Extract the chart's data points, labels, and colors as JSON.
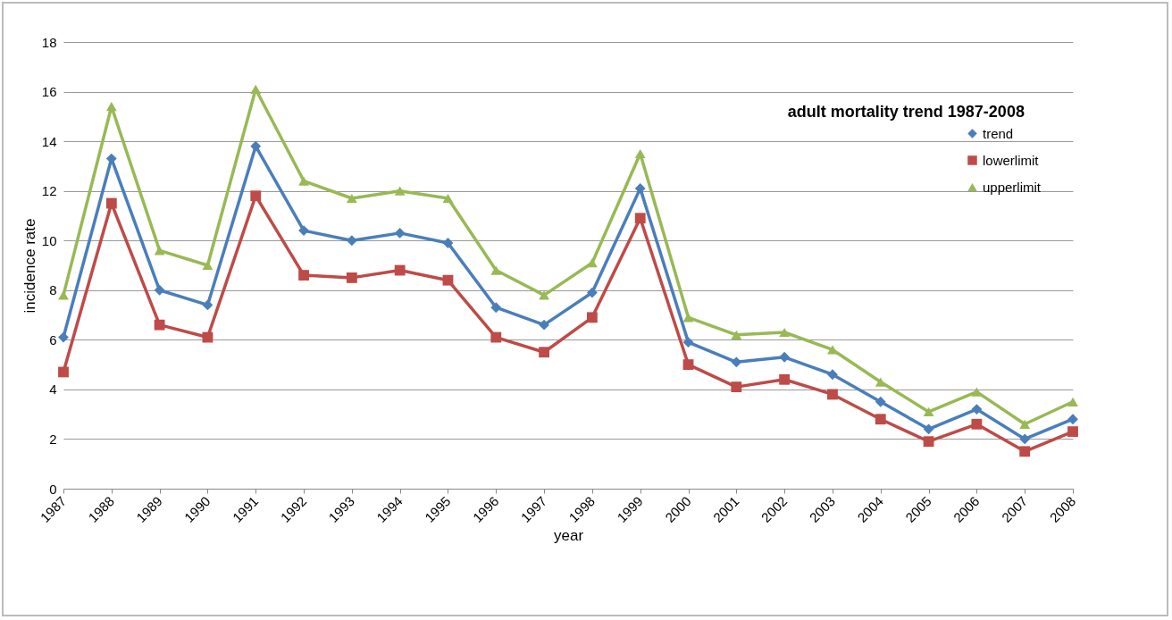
{
  "chart_data": {
    "type": "line",
    "title": "adult mortality trend 1987-2008",
    "xlabel": "year",
    "ylabel": "incidence rate",
    "categories": [
      "1987",
      "1988",
      "1989",
      "1990",
      "1991",
      "1992",
      "1993",
      "1994",
      "1995",
      "1996",
      "1997",
      "1998",
      "1999",
      "2000",
      "2001",
      "2002",
      "2003",
      "2004",
      "2005",
      "2006",
      "2007",
      "2008"
    ],
    "series": [
      {
        "name": "trend",
        "color": "#4a7ebb",
        "marker": "diamond",
        "values": [
          6.1,
          13.3,
          8.0,
          7.4,
          13.8,
          10.4,
          10.0,
          10.3,
          9.9,
          7.3,
          6.6,
          7.9,
          12.1,
          5.9,
          5.1,
          5.3,
          4.6,
          3.5,
          2.4,
          3.2,
          2.0,
          2.8
        ]
      },
      {
        "name": "lowerlimit",
        "color": "#be4b48",
        "marker": "square",
        "values": [
          4.7,
          11.5,
          6.6,
          6.1,
          11.8,
          8.6,
          8.5,
          8.8,
          8.4,
          6.1,
          5.5,
          6.9,
          10.9,
          5.0,
          4.1,
          4.4,
          3.8,
          2.8,
          1.9,
          2.6,
          1.5,
          2.3
        ]
      },
      {
        "name": "upperlimit",
        "color": "#98b954",
        "marker": "triangle",
        "values": [
          7.8,
          15.4,
          9.6,
          9.0,
          16.1,
          12.4,
          11.7,
          12.0,
          11.7,
          8.8,
          7.8,
          9.1,
          13.5,
          6.9,
          6.2,
          6.3,
          5.6,
          4.3,
          3.1,
          3.9,
          2.6,
          3.5
        ]
      }
    ],
    "ylim": [
      0,
      18
    ],
    "yticks": [
      0,
      2,
      4,
      6,
      8,
      10,
      12,
      14,
      16,
      18
    ],
    "grid": "y",
    "legend": "top right",
    "line_style": "solid"
  }
}
